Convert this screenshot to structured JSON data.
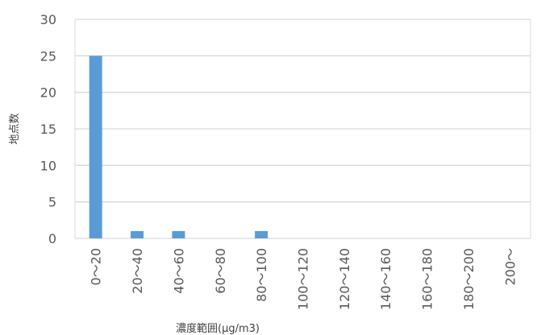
{
  "chart_data": {
    "type": "bar",
    "title": "",
    "xlabel": "濃度範囲(μg/m3)",
    "ylabel": "地点数",
    "ylim": [
      0,
      30
    ],
    "yticks": [
      0,
      5,
      10,
      15,
      20,
      25,
      30
    ],
    "grid": true,
    "categories": [
      "0～20",
      "20～40",
      "40～60",
      "60～80",
      "80～100",
      "100～120",
      "120～140",
      "140～160",
      "160～180",
      "180～200",
      "200～"
    ],
    "values": [
      25,
      1,
      1,
      0,
      1,
      0,
      0,
      0,
      0,
      0,
      0
    ],
    "bar_color": "#5b9bd5",
    "grid_color": "#d9d9d9"
  }
}
